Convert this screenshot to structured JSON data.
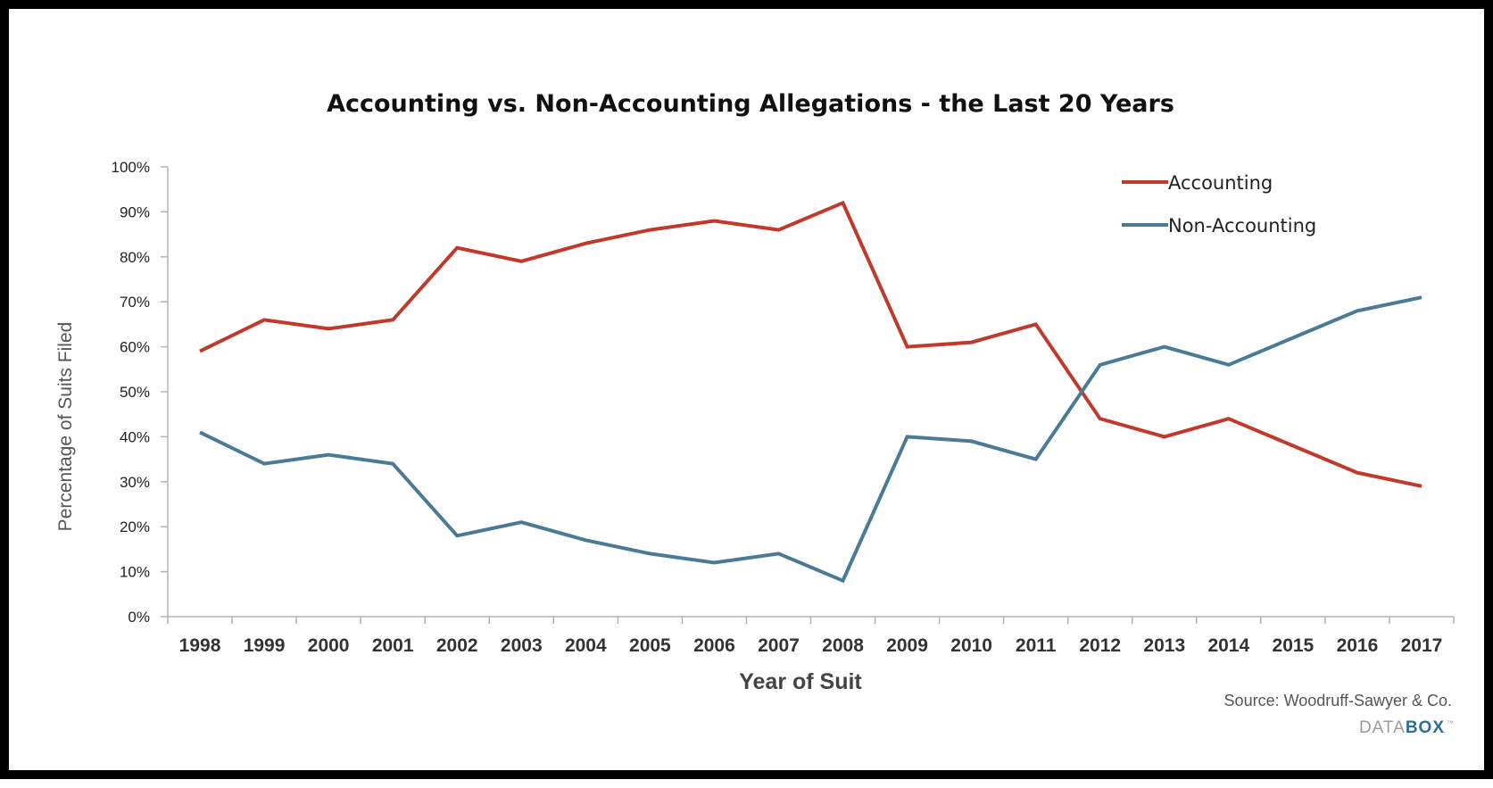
{
  "chart_data": {
    "type": "line",
    "title": "Accounting vs. Non-Accounting Allegations - the Last 20 Years",
    "xlabel": "Year of Suit",
    "ylabel": "Percentage of Suits Filed",
    "categories": [
      "1998",
      "1999",
      "2000",
      "2001",
      "2002",
      "2003",
      "2004",
      "2005",
      "2006",
      "2007",
      "2008",
      "2009",
      "2010",
      "2011",
      "2012",
      "2013",
      "2014",
      "2015",
      "2016",
      "2017"
    ],
    "ylim": [
      0,
      100
    ],
    "yticks": [
      "0%",
      "10%",
      "20%",
      "30%",
      "40%",
      "50%",
      "60%",
      "70%",
      "80%",
      "90%",
      "100%"
    ],
    "series": [
      {
        "name": "Accounting",
        "color": "#c0392b",
        "values": [
          59,
          66,
          64,
          66,
          82,
          79,
          83,
          86,
          88,
          86,
          92,
          60,
          61,
          65,
          44,
          40,
          44,
          38,
          32,
          29
        ]
      },
      {
        "name": "Non-Accounting",
        "color": "#4a7a94",
        "values": [
          41,
          34,
          36,
          34,
          18,
          21,
          17,
          14,
          12,
          14,
          8,
          40,
          39,
          35,
          56,
          60,
          56,
          62,
          68,
          71
        ]
      }
    ],
    "grid": false,
    "legend_position": "top-right"
  },
  "footer": {
    "source": "Source: Woodruff-Sawyer & Co.",
    "brand_light": "DATA",
    "brand_bold": "BOX",
    "brand_tm": "™"
  }
}
